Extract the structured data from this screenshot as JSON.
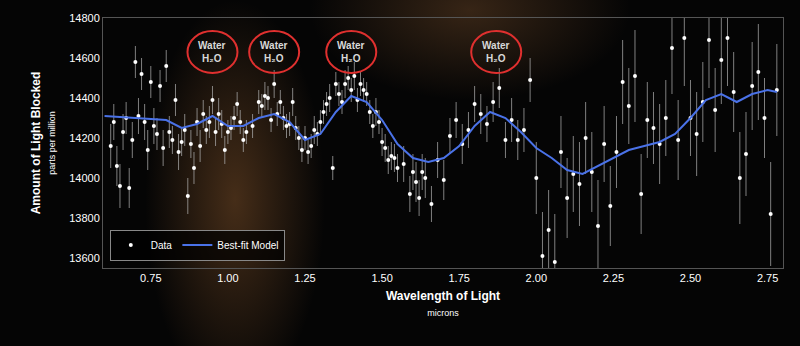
{
  "chart_data": {
    "type": "scatter",
    "x_title": "Wavelength of Light",
    "x_subtitle": "microns",
    "y_title": "Amount of Light Blocked",
    "y_subtitle": "parts per million",
    "xlim": [
      0.595,
      2.8
    ],
    "ylim": [
      13550,
      14800
    ],
    "xticks": [
      0.75,
      {
        "value": 1.0,
        "label": "1.00"
      },
      1.25,
      {
        "value": 1.5,
        "label": "1.50"
      },
      1.75,
      {
        "value": 2.0,
        "label": "2.00"
      },
      2.25,
      {
        "value": 2.5,
        "label": "2.50"
      },
      2.75
    ],
    "yticks": [
      13600,
      13800,
      14000,
      14200,
      14400,
      14600,
      14800
    ],
    "grid": false,
    "legend": "bottom left",
    "annotations": [
      {
        "lines": [
          "Water",
          "H₂O"
        ],
        "x": 0.95,
        "y": 14630
      },
      {
        "lines": [
          "Water",
          "H₂O"
        ],
        "x": 1.15,
        "y": 14630
      },
      {
        "lines": [
          "Water",
          "H₂O"
        ],
        "x": 1.4,
        "y": 14630
      },
      {
        "lines": [
          "Water",
          "H₂O"
        ],
        "x": 1.87,
        "y": 14630
      }
    ],
    "series": [
      {
        "name": "Data",
        "type": "scatter",
        "color": "#ffffff",
        "marker": "circle",
        "x": [
          0.62,
          0.63,
          0.64,
          0.65,
          0.66,
          0.67,
          0.68,
          0.69,
          0.7,
          0.71,
          0.72,
          0.73,
          0.74,
          0.75,
          0.76,
          0.77,
          0.78,
          0.79,
          0.8,
          0.81,
          0.82,
          0.83,
          0.84,
          0.85,
          0.86,
          0.87,
          0.88,
          0.89,
          0.9,
          0.91,
          0.92,
          0.93,
          0.94,
          0.95,
          0.96,
          0.97,
          0.98,
          0.99,
          1.0,
          1.01,
          1.02,
          1.03,
          1.04,
          1.05,
          1.06,
          1.08,
          1.1,
          1.11,
          1.12,
          1.13,
          1.14,
          1.15,
          1.16,
          1.17,
          1.18,
          1.19,
          1.2,
          1.21,
          1.22,
          1.23,
          1.24,
          1.25,
          1.26,
          1.27,
          1.28,
          1.29,
          1.3,
          1.31,
          1.32,
          1.33,
          1.34,
          1.35,
          1.36,
          1.37,
          1.38,
          1.39,
          1.4,
          1.41,
          1.42,
          1.43,
          1.44,
          1.45,
          1.46,
          1.47,
          1.48,
          1.49,
          1.5,
          1.51,
          1.52,
          1.53,
          1.54,
          1.55,
          1.57,
          1.59,
          1.6,
          1.61,
          1.62,
          1.63,
          1.64,
          1.66,
          1.68,
          1.7,
          1.72,
          1.74,
          1.76,
          1.78,
          1.8,
          1.82,
          1.84,
          1.86,
          1.88,
          1.9,
          1.92,
          1.94,
          1.96,
          1.98,
          2.0,
          2.02,
          2.04,
          2.06,
          2.08,
          2.1,
          2.12,
          2.14,
          2.16,
          2.18,
          2.2,
          2.22,
          2.24,
          2.26,
          2.28,
          2.3,
          2.32,
          2.34,
          2.36,
          2.38,
          2.4,
          2.42,
          2.44,
          2.46,
          2.48,
          2.5,
          2.52,
          2.54,
          2.56,
          2.58,
          2.6,
          2.62,
          2.64,
          2.66,
          2.68,
          2.7,
          2.72,
          2.74,
          2.76,
          2.78
        ],
        "values": [
          14160,
          14280,
          14060,
          13960,
          14230,
          14300,
          13950,
          14190,
          14580,
          14310,
          14520,
          14280,
          14140,
          14480,
          14260,
          14220,
          14460,
          14150,
          14560,
          14230,
          14190,
          14390,
          14130,
          14180,
          14240,
          13910,
          14170,
          14050,
          14280,
          14160,
          14320,
          14240,
          14280,
          14390,
          14230,
          14320,
          14270,
          14140,
          14230,
          14250,
          14300,
          14370,
          14280,
          14190,
          14230,
          14260,
          14380,
          14360,
          14410,
          14400,
          14290,
          14470,
          14320,
          14380,
          14300,
          14260,
          14270,
          14380,
          14250,
          14200,
          14140,
          14200,
          14130,
          14160,
          14240,
          14220,
          14280,
          14330,
          14370,
          14400,
          14050,
          14470,
          14420,
          14380,
          14470,
          14500,
          14440,
          14510,
          14390,
          14470,
          14440,
          14420,
          14330,
          14260,
          14330,
          14280,
          14180,
          14150,
          14090,
          14110,
          14100,
          14050,
          14070,
          13920,
          14030,
          13980,
          13900,
          14030,
          14000,
          13870,
          14090,
          13990,
          14210,
          14290,
          14170,
          14240,
          14370,
          14320,
          14270,
          14380,
          14450,
          14190,
          14290,
          14190,
          14240,
          14490,
          14000,
          13610,
          13740,
          13580,
          14130,
          13900,
          14020,
          13970,
          14200,
          14030,
          13760,
          14170,
          13860,
          14130,
          14480,
          14360,
          14510,
          13920,
          14290,
          14250,
          14170,
          14300,
          14650,
          14190,
          14700,
          14300,
          14220,
          14380,
          14690,
          14340,
          14590,
          14700,
          14430,
          14000,
          14120,
          14460,
          14530,
          14300,
          13820,
          14440
        ],
        "error": [
          110,
          90,
          100,
          110,
          90,
          80,
          100,
          90,
          80,
          90,
          80,
          90,
          100,
          80,
          90,
          80,
          80,
          90,
          80,
          80,
          70,
          80,
          90,
          70,
          80,
          90,
          70,
          80,
          70,
          80,
          70,
          70,
          80,
          70,
          70,
          80,
          70,
          70,
          60,
          60,
          60,
          60,
          60,
          60,
          60,
          60,
          60,
          60,
          70,
          60,
          60,
          70,
          60,
          60,
          60,
          60,
          60,
          70,
          60,
          60,
          60,
          60,
          60,
          60,
          70,
          60,
          60,
          60,
          60,
          70,
          60,
          60,
          60,
          60,
          70,
          60,
          60,
          70,
          60,
          60,
          60,
          60,
          60,
          60,
          70,
          60,
          70,
          70,
          70,
          70,
          70,
          70,
          90,
          90,
          90,
          100,
          90,
          90,
          100,
          90,
          90,
          100,
          90,
          90,
          100,
          90,
          90,
          100,
          90,
          100,
          100,
          90,
          110,
          100,
          110,
          110,
          180,
          220,
          200,
          240,
          180,
          200,
          190,
          210,
          180,
          200,
          230,
          190,
          200,
          180,
          210,
          190,
          230,
          200,
          190,
          180,
          200,
          190,
          230,
          200,
          240,
          190,
          210,
          200,
          240,
          210,
          220,
          240,
          200,
          230,
          210,
          220,
          240,
          200,
          260,
          230
        ]
      },
      {
        "name": "Best-fit Model",
        "type": "line",
        "color": "#4a72e8",
        "x": [
          0.6,
          0.7,
          0.8,
          0.85,
          0.9,
          0.95,
          1.0,
          1.05,
          1.1,
          1.15,
          1.2,
          1.25,
          1.3,
          1.35,
          1.4,
          1.45,
          1.5,
          1.55,
          1.6,
          1.65,
          1.7,
          1.75,
          1.8,
          1.85,
          1.9,
          1.95,
          2.0,
          2.05,
          2.1,
          2.15,
          2.2,
          2.25,
          2.3,
          2.35,
          2.4,
          2.45,
          2.5,
          2.55,
          2.6,
          2.65,
          2.7,
          2.75,
          2.78
        ],
        "values": [
          14310,
          14300,
          14290,
          14250,
          14270,
          14310,
          14260,
          14260,
          14300,
          14320,
          14280,
          14190,
          14220,
          14330,
          14410,
          14380,
          14290,
          14170,
          14100,
          14080,
          14100,
          14160,
          14260,
          14330,
          14300,
          14230,
          14150,
          14100,
          14040,
          14020,
          14060,
          14100,
          14140,
          14160,
          14180,
          14220,
          14300,
          14390,
          14420,
          14380,
          14420,
          14440,
          14430
        ]
      }
    ]
  }
}
